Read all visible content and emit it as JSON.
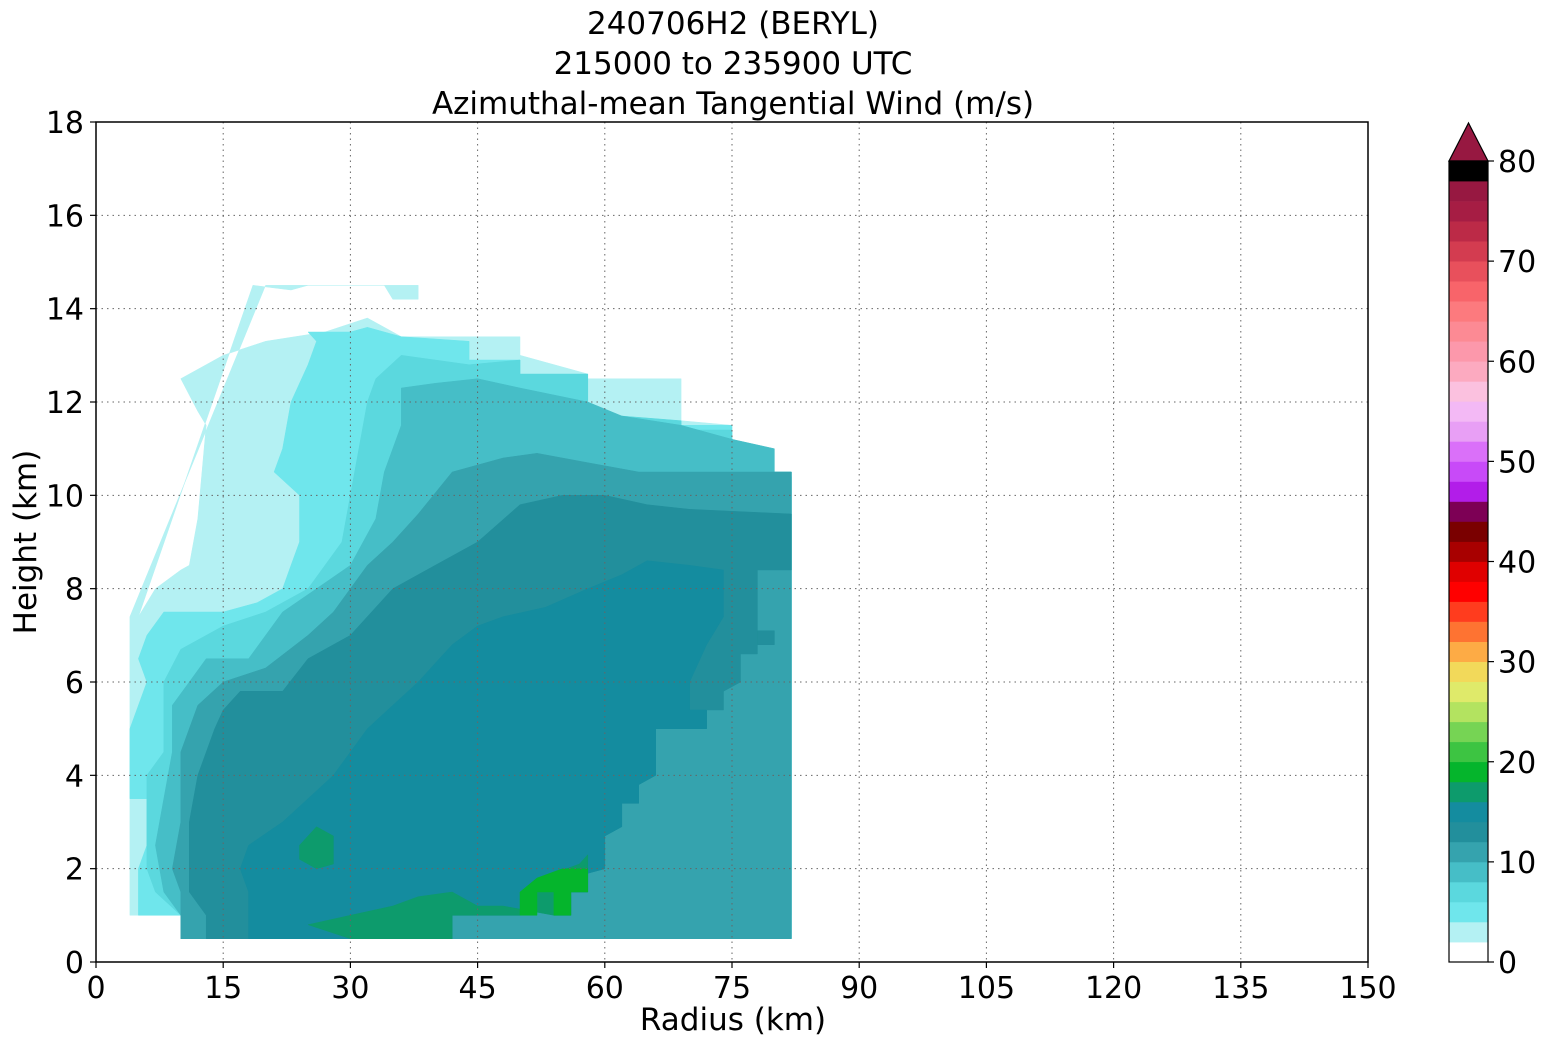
{
  "title": {
    "line1": "240706H2 (BERYL)",
    "line2": "215000 to 235900 UTC",
    "line3": "Azimuthal-mean Tangential Wind (m/s)"
  },
  "chart_data": {
    "type": "filled-contour",
    "xlabel": "Radius (km)",
    "ylabel": "Height (km)",
    "xlim": [
      0,
      150
    ],
    "ylim": [
      0,
      18
    ],
    "xticks": [
      "0",
      "15",
      "30",
      "45",
      "60",
      "75",
      "90",
      "105",
      "120",
      "135",
      "150"
    ],
    "yticks": [
      "0",
      "2",
      "4",
      "6",
      "8",
      "10",
      "12",
      "14",
      "16",
      "18"
    ],
    "grid": true,
    "colorbar": {
      "range": [
        0,
        80
      ],
      "step": 2,
      "extend": "max",
      "ticks": [
        "0",
        "10",
        "20",
        "30",
        "40",
        "50",
        "60",
        "70",
        "80"
      ],
      "colors": [
        "#ffffff",
        "#b4f1f3",
        "#6fe6ec",
        "#5bd8de",
        "#46bec7",
        "#35a3ae",
        "#228f9c",
        "#148c9f",
        "#0d9b6c",
        "#05b52c",
        "#3dc442",
        "#76d454",
        "#b3e360",
        "#dfea6a",
        "#f2d95a",
        "#fdab45",
        "#fe7332",
        "#ff3c1e",
        "#ff0000",
        "#e00000",
        "#a80000",
        "#7a0000",
        "#7d0055",
        "#b21de9",
        "#c84af8",
        "#da70f9",
        "#e89ff5",
        "#f3b9f5",
        "#fbc1df",
        "#fcaac0",
        "#fc98ab",
        "#fc8a94",
        "#fc7a7e",
        "#f8646a",
        "#e8505c",
        "#d33c50",
        "#bc2a47",
        "#a61d44",
        "#971841"
      ]
    },
    "contours": [
      {
        "level_min": 2,
        "color": "#b4f1f3",
        "points": [
          [
            18.5,
            14.5
          ],
          [
            23,
            14.4
          ],
          [
            25,
            14.5
          ],
          [
            38,
            14.5
          ],
          [
            38,
            14.2
          ],
          [
            35,
            14.2
          ],
          [
            34,
            14.5
          ],
          [
            30,
            14.5
          ],
          [
            20,
            14.5
          ],
          [
            4,
            7.4
          ],
          [
            4,
            1.0
          ],
          [
            50,
            1.0
          ],
          [
            82,
            1.0
          ],
          [
            82,
            10.5
          ],
          [
            80,
            10.5
          ],
          [
            75,
            11
          ],
          [
            75,
            11.5
          ],
          [
            69,
            11.6
          ],
          [
            69,
            12.5
          ],
          [
            58,
            12.5
          ],
          [
            58,
            12.6
          ],
          [
            50,
            13
          ],
          [
            50,
            13.4
          ],
          [
            44,
            13.4
          ],
          [
            44,
            13.4
          ],
          [
            36,
            13.4
          ],
          [
            32,
            13.8
          ],
          [
            27,
            13.5
          ],
          [
            20,
            13.3
          ],
          [
            15,
            13
          ],
          [
            13,
            12.8
          ],
          [
            10,
            12.5
          ],
          [
            12,
            11.8
          ],
          [
            13,
            11.5
          ],
          [
            12,
            9.5
          ],
          [
            11,
            8.5
          ],
          [
            10,
            8.4
          ],
          [
            7,
            8.0
          ],
          [
            5,
            7.4
          ]
        ]
      },
      {
        "level_min": 4,
        "color": "#6fe6ec",
        "points": [
          [
            25,
            13.5
          ],
          [
            30,
            13.5
          ],
          [
            32,
            13.6
          ],
          [
            36,
            13.4
          ],
          [
            44,
            13.3
          ],
          [
            44,
            12.9
          ],
          [
            50,
            12.9
          ],
          [
            50,
            12.5
          ],
          [
            58,
            12.5
          ],
          [
            58,
            11.6
          ],
          [
            69,
            11.6
          ],
          [
            69,
            11.5
          ],
          [
            75,
            11.5
          ],
          [
            75,
            10.5
          ],
          [
            82,
            10.5
          ],
          [
            82,
            0.5
          ],
          [
            10,
            0.5
          ],
          [
            10,
            1.0
          ],
          [
            5,
            1.0
          ],
          [
            5,
            2.0
          ],
          [
            6,
            2.5
          ],
          [
            6,
            3.5
          ],
          [
            4,
            3.5
          ],
          [
            4,
            5.0
          ],
          [
            6,
            6.0
          ],
          [
            5,
            6.5
          ],
          [
            6,
            7.0
          ],
          [
            8,
            7.5
          ],
          [
            15,
            7.5
          ],
          [
            19,
            7.7
          ],
          [
            22,
            8.0
          ],
          [
            23,
            8.5
          ],
          [
            24,
            9.0
          ],
          [
            24,
            10.0
          ],
          [
            21,
            10.5
          ],
          [
            22,
            11
          ],
          [
            23,
            12.0
          ],
          [
            25,
            12.8
          ],
          [
            26,
            13.3
          ]
        ]
      },
      {
        "level_min": 6,
        "color": "#5bd8de",
        "points": [
          [
            36,
            13.0
          ],
          [
            40,
            12.9
          ],
          [
            44,
            12.8
          ],
          [
            50,
            12.9
          ],
          [
            50,
            12.6
          ],
          [
            58,
            12.6
          ],
          [
            58,
            11.8
          ],
          [
            62,
            11.7
          ],
          [
            69,
            11.6
          ],
          [
            69,
            11.4
          ],
          [
            75,
            11.4
          ],
          [
            75,
            10.4
          ],
          [
            82,
            10.4
          ],
          [
            82,
            0.5
          ],
          [
            10,
            0.5
          ],
          [
            10,
            1.0
          ],
          [
            7,
            1.5
          ],
          [
            6,
            2.0
          ],
          [
            6,
            4.0
          ],
          [
            8,
            4.5
          ],
          [
            8,
            6.0
          ],
          [
            10,
            6.7
          ],
          [
            15,
            7.2
          ],
          [
            20,
            7.5
          ],
          [
            25,
            8.0
          ],
          [
            29,
            9.0
          ],
          [
            30,
            10.0
          ],
          [
            31,
            11.0
          ],
          [
            32,
            12.0
          ],
          [
            33,
            12.5
          ]
        ]
      },
      {
        "level_min": 8,
        "color": "#46bec7",
        "points": [
          [
            36,
            12.3
          ],
          [
            40,
            12.4
          ],
          [
            45,
            12.5
          ],
          [
            50,
            12.3
          ],
          [
            58,
            12.0
          ],
          [
            62,
            11.7
          ],
          [
            69,
            11.5
          ],
          [
            75,
            11.2
          ],
          [
            80,
            11
          ],
          [
            80,
            10.5
          ],
          [
            82,
            10.5
          ],
          [
            82,
            0.5
          ],
          [
            10,
            0.5
          ],
          [
            10,
            1.0
          ],
          [
            8,
            1.5
          ],
          [
            7,
            2.5
          ],
          [
            8,
            3.5
          ],
          [
            9,
            4.5
          ],
          [
            9,
            5.5
          ],
          [
            11,
            6.0
          ],
          [
            13,
            6.5
          ],
          [
            18,
            6.5
          ],
          [
            22,
            7.5
          ],
          [
            26,
            8.0
          ],
          [
            30,
            8.5
          ],
          [
            33,
            9.5
          ],
          [
            34,
            10.5
          ],
          [
            36,
            11.5
          ]
        ]
      },
      {
        "level_min": 10,
        "color": "#35a3ae",
        "points": [
          [
            42,
            10.5
          ],
          [
            48,
            10.8
          ],
          [
            52,
            10.9
          ],
          [
            58,
            10.7
          ],
          [
            64,
            10.5
          ],
          [
            70,
            10.5
          ],
          [
            82,
            10.5
          ],
          [
            82,
            0.5
          ],
          [
            10,
            0.5
          ],
          [
            10,
            1.5
          ],
          [
            9,
            2.0
          ],
          [
            10,
            3.0
          ],
          [
            10,
            4.5
          ],
          [
            12,
            5.5
          ],
          [
            15,
            6.0
          ],
          [
            20,
            6.3
          ],
          [
            25,
            7.0
          ],
          [
            28,
            7.5
          ],
          [
            32,
            8.5
          ],
          [
            35,
            9.0
          ],
          [
            38,
            9.6
          ]
        ]
      },
      {
        "level_min": 12,
        "color": "#228f9c",
        "points": [
          [
            50,
            9.8
          ],
          [
            55,
            10.0
          ],
          [
            60,
            10.0
          ],
          [
            65,
            9.8
          ],
          [
            70,
            9.7
          ],
          [
            82,
            9.6
          ],
          [
            82,
            8.4
          ],
          [
            78,
            8.4
          ],
          [
            78,
            6.8
          ],
          [
            80,
            6.8
          ],
          [
            80,
            7.1
          ],
          [
            78,
            7.1
          ],
          [
            78,
            6.6
          ],
          [
            76,
            6.6
          ],
          [
            76,
            6.0
          ],
          [
            74,
            5.8
          ],
          [
            74,
            5.4
          ],
          [
            72,
            5.4
          ],
          [
            72,
            5.0
          ],
          [
            66,
            5.0
          ],
          [
            66,
            4.0
          ],
          [
            64,
            3.8
          ],
          [
            64,
            3.4
          ],
          [
            62,
            3.4
          ],
          [
            62,
            2.9
          ],
          [
            60,
            2.7
          ],
          [
            60,
            2.0
          ],
          [
            58,
            1.9
          ],
          [
            58,
            1.5
          ],
          [
            56,
            1.5
          ],
          [
            56,
            1.0
          ],
          [
            54,
            1.0
          ],
          [
            54,
            1.5
          ],
          [
            52,
            1.5
          ],
          [
            50,
            1.0
          ],
          [
            42,
            1.0
          ],
          [
            42,
            0.5
          ],
          [
            13,
            0.5
          ],
          [
            13,
            1.0
          ],
          [
            11,
            1.5
          ],
          [
            11,
            3.0
          ],
          [
            12,
            4.0
          ],
          [
            14,
            5.0
          ],
          [
            15,
            5.4
          ],
          [
            17,
            5.8
          ],
          [
            22,
            5.8
          ],
          [
            25,
            6.5
          ],
          [
            30,
            7.0
          ],
          [
            35,
            8.0
          ],
          [
            40,
            8.5
          ],
          [
            45,
            9.0
          ]
        ]
      },
      {
        "level_min": 14,
        "color": "#148c9f",
        "points": [
          [
            48,
            7.4
          ],
          [
            53,
            7.6
          ],
          [
            58,
            8.0
          ],
          [
            62,
            8.3
          ],
          [
            65,
            8.6
          ],
          [
            70,
            8.5
          ],
          [
            74,
            8.4
          ],
          [
            74,
            7.4
          ],
          [
            72,
            6.8
          ],
          [
            70,
            6.0
          ],
          [
            70,
            5.4
          ],
          [
            72,
            5.4
          ],
          [
            72,
            5.0
          ],
          [
            66,
            5.0
          ],
          [
            66,
            4.0
          ],
          [
            64,
            3.8
          ],
          [
            64,
            3.4
          ],
          [
            62,
            3.4
          ],
          [
            62,
            2.9
          ],
          [
            60,
            2.7
          ],
          [
            60,
            2.0
          ],
          [
            58,
            1.9
          ],
          [
            58,
            1.5
          ],
          [
            56,
            1.5
          ],
          [
            56,
            1.0
          ],
          [
            54,
            1.0
          ],
          [
            54,
            1.5
          ],
          [
            52,
            1.5
          ],
          [
            50,
            1.0
          ],
          [
            42,
            1.0
          ],
          [
            42,
            0.5
          ],
          [
            18,
            0.5
          ],
          [
            18,
            1.5
          ],
          [
            17,
            2.0
          ],
          [
            18,
            2.5
          ],
          [
            22,
            3.0
          ],
          [
            25,
            3.5
          ],
          [
            28,
            4.0
          ],
          [
            30,
            4.5
          ],
          [
            32,
            5.0
          ],
          [
            35,
            5.5
          ],
          [
            38,
            6.0
          ],
          [
            40,
            6.4
          ],
          [
            42,
            6.8
          ],
          [
            45,
            7.2
          ]
        ]
      },
      {
        "level_min": 16,
        "color": "#0d9b6c",
        "points": [
          [
            30,
            0.5
          ],
          [
            42,
            0.5
          ],
          [
            42,
            1.0
          ],
          [
            50,
            1.0
          ],
          [
            52,
            1.5
          ],
          [
            54,
            1.5
          ],
          [
            54,
            1.9
          ],
          [
            57,
            2.1
          ],
          [
            58,
            2.3
          ],
          [
            58,
            1.5
          ],
          [
            56,
            1.5
          ],
          [
            56,
            1.0
          ],
          [
            54,
            1.0
          ],
          [
            54,
            1.0
          ],
          [
            48,
            1.2
          ],
          [
            45,
            1.2
          ],
          [
            42,
            1.5
          ],
          [
            38,
            1.4
          ],
          [
            35,
            1.2
          ],
          [
            30,
            1.0
          ],
          [
            25,
            0.8
          ]
        ]
      },
      {
        "level_min": 16,
        "color": "#0d9b6c",
        "points": [
          [
            24,
            2.5
          ],
          [
            26,
            2.9
          ],
          [
            28,
            2.7
          ],
          [
            28,
            2.1
          ],
          [
            26,
            2.0
          ],
          [
            24,
            2.2
          ]
        ]
      },
      {
        "level_min": 18,
        "color": "#05b52c",
        "points": [
          [
            50,
            1.0
          ],
          [
            52,
            1.0
          ],
          [
            52,
            1.5
          ],
          [
            54,
            1.5
          ],
          [
            54,
            1.0
          ],
          [
            56,
            1.0
          ],
          [
            56,
            1.5
          ],
          [
            58,
            1.5
          ],
          [
            58,
            2.0
          ],
          [
            55,
            2.0
          ],
          [
            52,
            1.8
          ],
          [
            50,
            1.5
          ]
        ]
      }
    ]
  }
}
